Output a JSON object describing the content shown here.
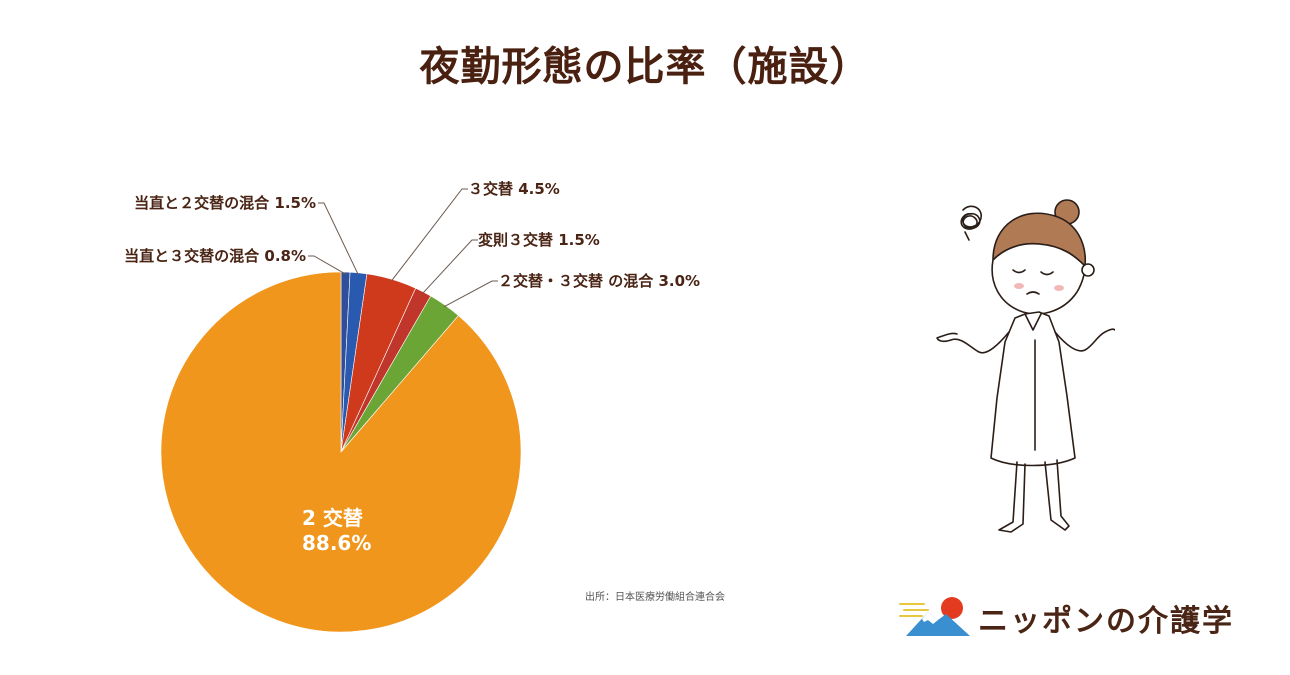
{
  "title": "夜勤形態の比率（施設）",
  "source": "出所：日本医療労働組合連合会",
  "logo": {
    "text": "ニッポンの介護学"
  },
  "colors": {
    "text": "#4a2515",
    "slice_2shift": "#f0961c",
    "slice_3shift": "#d03a1c",
    "slice_irregular3": "#c1362b",
    "slice_mixed23": "#6aa535",
    "slice_duty2": "#2a5ab0",
    "slice_duty3": "#2f4e9c"
  },
  "chart_data": {
    "type": "pie",
    "title": "夜勤形態の比率（施設）",
    "slices": [
      {
        "label": "当直と３交替の混合",
        "value": 0.8,
        "display": "当直と３交替の混合 0.8%",
        "color": "#2f4e9c"
      },
      {
        "label": "当直と２交替の混合",
        "value": 1.5,
        "display": "当直と２交替の混合 1.5%",
        "color": "#2a5ab0"
      },
      {
        "label": "３交替",
        "value": 4.5,
        "display": "３交替 4.5%",
        "color": "#d03a1c"
      },
      {
        "label": "変則３交替",
        "value": 1.5,
        "display": "変則３交替 1.5%",
        "color": "#c1362b"
      },
      {
        "label": "２交替・３交替 の混合",
        "value": 3.0,
        "display": "２交替・３交替 の混合 3.0%",
        "color": "#6aa535"
      },
      {
        "label": "２交替",
        "value": 88.6,
        "display": "2 交替",
        "display_value": "88.6%",
        "color": "#f0961c"
      }
    ]
  }
}
